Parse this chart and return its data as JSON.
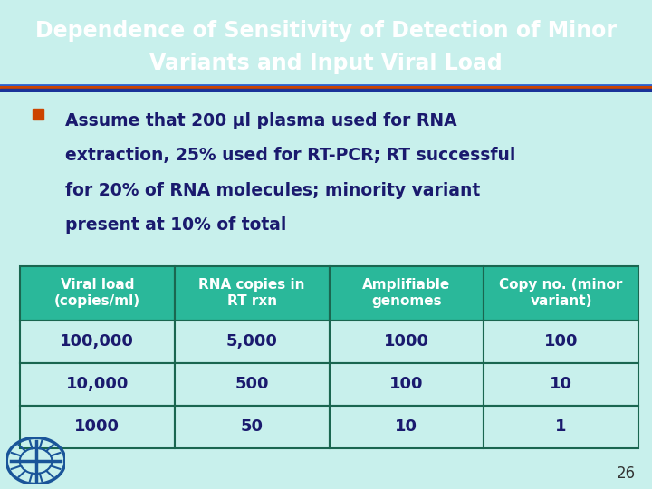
{
  "title_line1": "Dependence of Sensitivity of Detection of Minor",
  "title_line2": "Variants and Input Viral Load",
  "title_text_color": "#ffffff",
  "body_bg_color": "#c8f0ec",
  "separator_color1": "#cc4400",
  "separator_color2": "#1a3399",
  "bullet_color": "#cc4400",
  "bullet_text_color": "#1a1a6e",
  "table_header_bg": "#2ab89a",
  "table_header_text_color": "#ffffff",
  "table_cell_bg": "#c8f0ec",
  "table_border_color": "#1a6650",
  "table_data_text_color": "#1a1a6e",
  "table_headers": [
    "Viral load\n(copies/ml)",
    "RNA copies in\nRT rxn",
    "Amplifiable\ngenomes",
    "Copy no. (minor\nvariant)"
  ],
  "table_rows": [
    [
      "100,000",
      "5,000",
      "1000",
      "100"
    ],
    [
      "10,000",
      "500",
      "100",
      "10"
    ],
    [
      "1000",
      "50",
      "10",
      "1"
    ]
  ],
  "bullet_lines": [
    "Assume that 200 μl plasma used for RNA",
    "extraction, 25% used for RT-PCR; RT successful",
    "for 20% of RNA molecules; minority variant",
    "present at 10% of total"
  ],
  "page_number": "26",
  "page_number_color": "#333333"
}
